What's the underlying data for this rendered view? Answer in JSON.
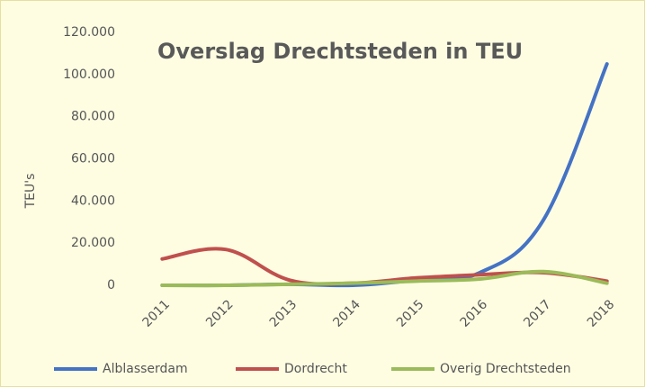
{
  "chart_data": {
    "type": "line",
    "title": "Overslag Drechtsteden in TEU",
    "y_label": "TEU's",
    "categories": [
      "2011",
      "2012",
      "2013",
      "2014",
      "2015",
      "2016",
      "2017",
      "2018"
    ],
    "series": [
      {
        "name": "Alblasserdam",
        "color": "#4472c4",
        "values": [
          0,
          0,
          500,
          0,
          2500,
          6000,
          31000,
          105000
        ]
      },
      {
        "name": "Dordrecht",
        "color": "#c0504d",
        "values": [
          12500,
          17000,
          2500,
          1000,
          3500,
          5000,
          6000,
          2000
        ]
      },
      {
        "name": "Overig Drechtsteden",
        "color": "#9bbb59",
        "values": [
          0,
          0,
          500,
          1000,
          2000,
          3000,
          6500,
          1000
        ]
      }
    ],
    "ylim": [
      0,
      120000
    ],
    "yticks": [
      0,
      {
        "value": 20000,
        "label": "20.000"
      },
      {
        "value": 40000,
        "label": "40.000"
      },
      {
        "value": 60000,
        "label": "60.000"
      },
      {
        "value": 80000,
        "label": "80.000"
      },
      {
        "value": 100000,
        "label": "100.000"
      },
      {
        "value": 120000,
        "label": "120.000"
      }
    ],
    "legend": "bottom"
  }
}
